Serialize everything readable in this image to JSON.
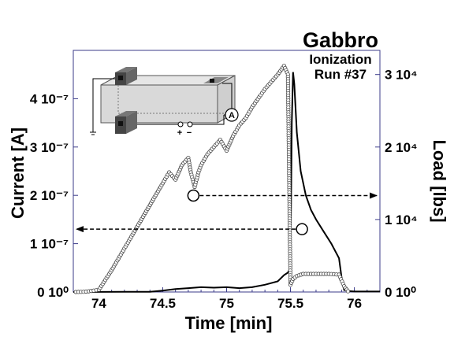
{
  "title": "Gabbro",
  "subtitle_1": "Ionization",
  "subtitle_2": "Run #37",
  "inset": {
    "ammeter_label": "A",
    "plus": "+",
    "minus": "−"
  },
  "chart_data": {
    "type": "line",
    "xlabel": "Time [min]",
    "ylabel_left": "Current [A]",
    "ylabel_right": "Load [lbs]",
    "xlim": [
      73.8,
      76.2
    ],
    "ylim_left": [
      0,
      5e-07
    ],
    "ylim_right": [
      0,
      33333
    ],
    "x_ticks": [
      "74",
      "74.5",
      "75",
      "75.5",
      "76"
    ],
    "x_tick_values": [
      74,
      74.5,
      75,
      75.5,
      76
    ],
    "y_left_ticks": [
      "0 10⁰",
      "1 10⁻⁷",
      "2 10⁻⁷",
      "3 10⁻⁷",
      "4 10⁻⁷"
    ],
    "y_left_tick_values": [
      0,
      1e-07,
      2e-07,
      3e-07,
      4e-07
    ],
    "y_right_ticks": [
      "0 10⁰",
      "1 10⁴",
      "2 10⁴",
      "3 10⁴"
    ],
    "y_right_tick_values": [
      0,
      10000,
      20000,
      30000
    ],
    "grid": false,
    "series": [
      {
        "axis": "left",
        "style": "line",
        "x": [
          73.8,
          74.0,
          74.2,
          74.4,
          74.5,
          74.6,
          74.7,
          74.8,
          74.9,
          75.0,
          75.1,
          75.2,
          75.3,
          75.4,
          75.45,
          75.48,
          75.5,
          75.51,
          75.52,
          75.53,
          75.55,
          75.58,
          75.62,
          75.66,
          75.7,
          75.76,
          75.82,
          75.88,
          75.9,
          75.92,
          75.95,
          76.0,
          76.2
        ],
        "y": [
          0,
          2e-10,
          3e-10,
          4e-10,
          3e-09,
          6e-09,
          8e-09,
          1e-08,
          9e-09,
          1e-08,
          8e-09,
          1e-08,
          1.5e-08,
          2.2e-08,
          3.5e-08,
          4e-08,
          5e-08,
          3.5e-07,
          4.55e-07,
          4.3e-07,
          3.3e-07,
          2.5e-07,
          2e-07,
          1.7e-07,
          1.5e-07,
          1.25e-07,
          1e-07,
          7e-08,
          3e-08,
          4e-09,
          2e-09,
          1e-09,
          1e-09
        ]
      },
      {
        "axis": "right",
        "style": "markers",
        "x": [
          73.82,
          73.9,
          74.0,
          74.1,
          74.2,
          74.3,
          74.4,
          74.5,
          74.55,
          74.6,
          74.65,
          74.7,
          74.72,
          74.75,
          74.78,
          74.8,
          74.85,
          74.9,
          74.95,
          75.0,
          75.05,
          75.1,
          75.15,
          75.2,
          75.3,
          75.4,
          75.45,
          75.48,
          75.5,
          75.52,
          75.55,
          75.6,
          75.7,
          75.8,
          75.88,
          75.92,
          75.95
        ],
        "y": [
          0,
          50,
          300,
          3000,
          6000,
          9000,
          12000,
          15000,
          16500,
          15500,
          17500,
          18500,
          16500,
          14500,
          16500,
          17500,
          19000,
          20000,
          21000,
          19500,
          21500,
          23000,
          24000,
          25500,
          28000,
          30000,
          31200,
          30000,
          1000,
          1800,
          2200,
          2500,
          2500,
          2500,
          2400,
          800,
          100
        ]
      }
    ],
    "annotations": [
      {
        "type": "circle_marker",
        "target_axis": "right",
        "x": 74.74,
        "y": 13300,
        "arrow_to": "right"
      },
      {
        "type": "circle_marker",
        "target_axis": "left",
        "x": 75.59,
        "y": 1.3e-07,
        "arrow_to": "left"
      }
    ]
  }
}
